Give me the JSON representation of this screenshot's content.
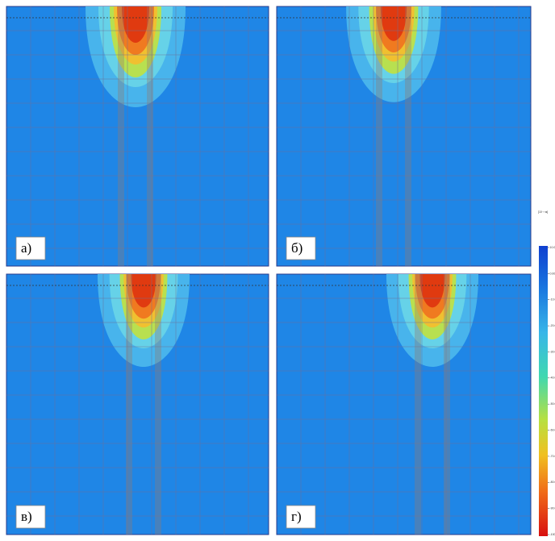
{
  "panels": [
    {
      "label": "а)"
    },
    {
      "label": "б)"
    },
    {
      "label": "в)"
    },
    {
      "label": "г)"
    }
  ],
  "colorbar": {
    "unit": "[10⁻³ м]",
    "ticks": [
      "10.00",
      "0.000",
      "-10.00",
      "-20.00",
      "-30.00",
      "-40.00",
      "-50.00",
      "-60.00",
      "-70.00",
      "-80.00",
      "-90.00",
      "-100.0"
    ]
  }
}
